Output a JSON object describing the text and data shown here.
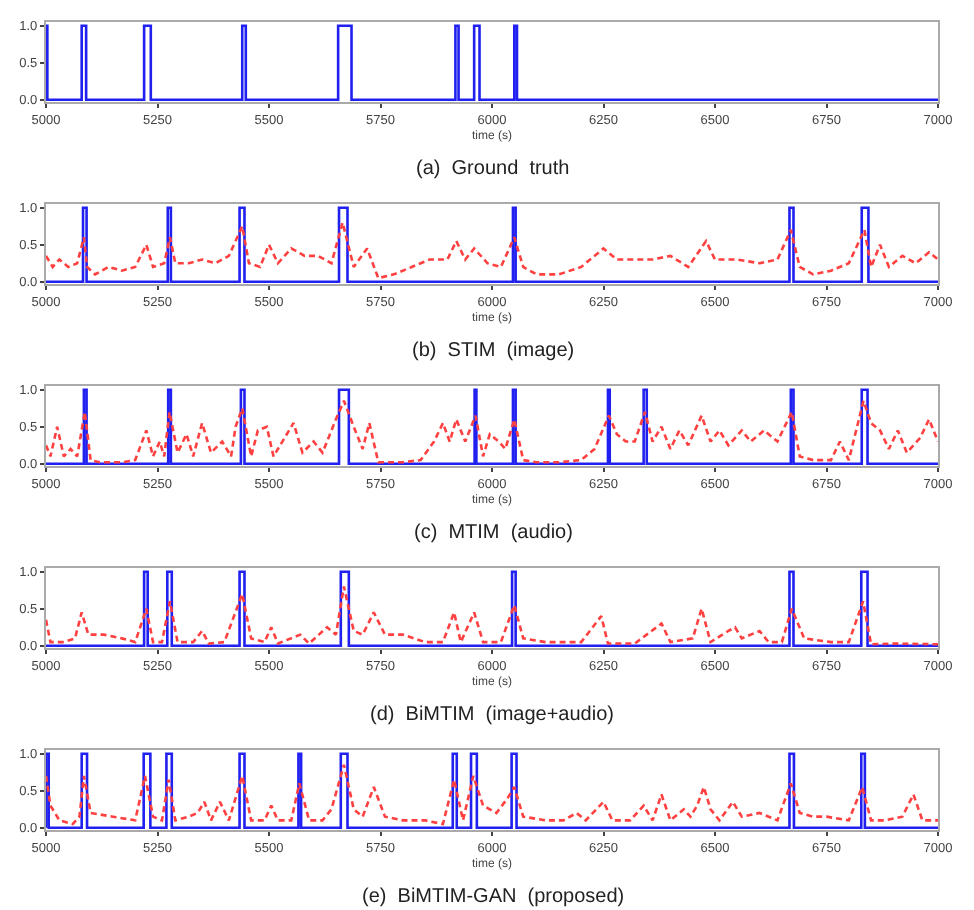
{
  "chart_data": [
    {
      "type": "line",
      "title": "(a)  Ground  truth",
      "xlabel": "time (s)",
      "xlim": [
        5000,
        7000
      ],
      "xticks": [
        5000,
        5250,
        5500,
        5750,
        6000,
        6250,
        6500,
        6750,
        7000
      ],
      "ylim": [
        -0.03,
        1.05
      ],
      "yticks": [
        {
          "value": 0,
          "label": "0.0"
        },
        {
          "value": 0.5,
          "label": "0.5"
        },
        {
          "value": 1,
          "label": "1.0"
        }
      ],
      "marker": "none",
      "series": [
        {
          "color": "#2020f0",
          "line_style": "solid",
          "x": [
            5000,
            5000,
            5003,
            5003,
            5080,
            5080,
            5090,
            5090,
            5220,
            5220,
            5235,
            5235,
            5440,
            5440,
            5448,
            5448,
            5655,
            5655,
            5685,
            5685,
            5918,
            5918,
            5925,
            5925,
            5960,
            5960,
            5972,
            5972,
            6050,
            6050,
            6056,
            6056,
            7000
          ],
          "values": [
            0,
            1,
            1,
            0,
            0,
            1,
            1,
            0,
            0,
            1,
            1,
            0,
            0,
            1,
            1,
            0,
            0,
            1,
            1,
            0,
            0,
            1,
            1,
            0,
            0,
            1,
            1,
            0,
            0,
            1,
            1,
            0,
            0
          ]
        }
      ]
    },
    {
      "type": "line",
      "title": "(b)  STIM  (image)",
      "xlabel": "time (s)",
      "xlim": [
        5000,
        7000
      ],
      "xticks": [
        5000,
        5250,
        5500,
        5750,
        6000,
        6250,
        6500,
        6750,
        7000
      ],
      "ylim": [
        -0.03,
        1.05
      ],
      "yticks": [
        {
          "value": 0,
          "label": "0.0"
        },
        {
          "value": 0.5,
          "label": "0.5"
        },
        {
          "value": 1,
          "label": "1.0"
        }
      ],
      "marker": "none",
      "series": [
        {
          "color": "#2020f0",
          "line_style": "solid",
          "x": [
            5000,
            5083,
            5083,
            5091,
            5091,
            5273,
            5273,
            5280,
            5280,
            5434,
            5434,
            5445,
            5445,
            5657,
            5657,
            5676,
            5676,
            6047,
            6047,
            6053,
            6053,
            6667,
            6667,
            6676,
            6676,
            6829,
            6829,
            6844,
            6844,
            7000
          ],
          "values": [
            0,
            0,
            1,
            1,
            0,
            0,
            1,
            1,
            0,
            0,
            1,
            1,
            0,
            0,
            1,
            1,
            0,
            0,
            1,
            1,
            0,
            0,
            1,
            1,
            0,
            0,
            1,
            1,
            0,
            0
          ]
        },
        {
          "color": "#ff4040",
          "line_style": "dashed",
          "x": [
            5000,
            5015,
            5030,
            5050,
            5070,
            5085,
            5092,
            5110,
            5140,
            5170,
            5200,
            5225,
            5240,
            5265,
            5278,
            5290,
            5320,
            5350,
            5380,
            5410,
            5440,
            5455,
            5480,
            5500,
            5520,
            5550,
            5580,
            5610,
            5640,
            5665,
            5690,
            5720,
            5745,
            5780,
            5820,
            5860,
            5900,
            5920,
            5940,
            5960,
            5990,
            6020,
            6050,
            6070,
            6100,
            6150,
            6200,
            6250,
            6280,
            6320,
            6360,
            6400,
            6440,
            6480,
            6500,
            6550,
            6600,
            6640,
            6670,
            6690,
            6720,
            6760,
            6800,
            6835,
            6850,
            6870,
            6890,
            6920,
            6950,
            6980,
            7000
          ],
          "values": [
            0.35,
            0.2,
            0.3,
            0.2,
            0.25,
            0.6,
            0.2,
            0.1,
            0.2,
            0.15,
            0.2,
            0.5,
            0.2,
            0.25,
            0.6,
            0.25,
            0.25,
            0.3,
            0.25,
            0.35,
            0.75,
            0.25,
            0.2,
            0.5,
            0.25,
            0.45,
            0.35,
            0.35,
            0.25,
            0.8,
            0.2,
            0.45,
            0.05,
            0.1,
            0.2,
            0.3,
            0.3,
            0.55,
            0.3,
            0.45,
            0.25,
            0.2,
            0.6,
            0.2,
            0.1,
            0.1,
            0.2,
            0.45,
            0.3,
            0.3,
            0.3,
            0.35,
            0.2,
            0.55,
            0.3,
            0.3,
            0.25,
            0.3,
            0.7,
            0.2,
            0.1,
            0.15,
            0.25,
            0.7,
            0.2,
            0.5,
            0.2,
            0.35,
            0.25,
            0.4,
            0.3
          ]
        }
      ]
    },
    {
      "type": "line",
      "title": "(c)  MTIM  (audio)",
      "xlabel": "time (s)",
      "xlim": [
        5000,
        7000
      ],
      "xticks": [
        5000,
        5250,
        5500,
        5750,
        6000,
        6250,
        6500,
        6750,
        7000
      ],
      "ylim": [
        -0.03,
        1.05
      ],
      "yticks": [
        {
          "value": 0,
          "label": "0.0"
        },
        {
          "value": 0.5,
          "label": "0.5"
        },
        {
          "value": 1,
          "label": "1.0"
        }
      ],
      "marker": "none",
      "series": [
        {
          "color": "#2020f0",
          "line_style": "solid",
          "x": [
            5000,
            5085,
            5085,
            5091,
            5091,
            5274,
            5274,
            5280,
            5280,
            5437,
            5437,
            5445,
            5445,
            5657,
            5657,
            5679,
            5679,
            5961,
            5961,
            5965,
            5965,
            6047,
            6047,
            6053,
            6053,
            6260,
            6260,
            6264,
            6264,
            6340,
            6340,
            6347,
            6347,
            6670,
            6670,
            6676,
            6676,
            6829,
            6829,
            6842,
            6842,
            7000
          ],
          "values": [
            0,
            0,
            1,
            1,
            0,
            0,
            1,
            1,
            0,
            0,
            1,
            1,
            0,
            0,
            1,
            1,
            0,
            0,
            1,
            1,
            0,
            0,
            1,
            1,
            0,
            0,
            1,
            1,
            0,
            0,
            1,
            1,
            0,
            0,
            1,
            1,
            0,
            0,
            1,
            1,
            0,
            0
          ]
        },
        {
          "color": "#ff4040",
          "line_style": "dashed",
          "x": [
            5000,
            5010,
            5025,
            5040,
            5055,
            5070,
            5087,
            5100,
            5120,
            5170,
            5200,
            5225,
            5240,
            5255,
            5265,
            5277,
            5295,
            5315,
            5330,
            5350,
            5370,
            5395,
            5415,
            5425,
            5440,
            5460,
            5475,
            5495,
            5510,
            5530,
            5555,
            5575,
            5600,
            5620,
            5650,
            5668,
            5690,
            5710,
            5725,
            5745,
            5800,
            5840,
            5870,
            5890,
            5905,
            5920,
            5940,
            5963,
            5980,
            5995,
            6015,
            6030,
            6050,
            6070,
            6100,
            6150,
            6200,
            6230,
            6262,
            6280,
            6300,
            6320,
            6343,
            6360,
            6380,
            6400,
            6420,
            6440,
            6470,
            6490,
            6510,
            6530,
            6560,
            6580,
            6610,
            6640,
            6672,
            6690,
            6720,
            6760,
            6780,
            6800,
            6833,
            6850,
            6870,
            6890,
            6910,
            6930,
            6960,
            6980,
            7000
          ],
          "values": [
            0.25,
            0.1,
            0.5,
            0.1,
            0.2,
            0.1,
            0.7,
            0.05,
            0.02,
            0.02,
            0.05,
            0.45,
            0.1,
            0.3,
            0.1,
            0.7,
            0.15,
            0.4,
            0.1,
            0.55,
            0.15,
            0.3,
            0.1,
            0.5,
            0.75,
            0.1,
            0.45,
            0.5,
            0.1,
            0.3,
            0.55,
            0.15,
            0.3,
            0.15,
            0.6,
            0.85,
            0.5,
            0.2,
            0.55,
            0.02,
            0.02,
            0.05,
            0.3,
            0.55,
            0.3,
            0.6,
            0.3,
            0.65,
            0.1,
            0.4,
            0.3,
            0.2,
            0.6,
            0.05,
            0.02,
            0.02,
            0.05,
            0.2,
            0.65,
            0.4,
            0.3,
            0.3,
            0.7,
            0.3,
            0.5,
            0.2,
            0.45,
            0.25,
            0.65,
            0.3,
            0.45,
            0.25,
            0.45,
            0.3,
            0.45,
            0.3,
            0.7,
            0.1,
            0.05,
            0.05,
            0.3,
            0.05,
            0.85,
            0.55,
            0.45,
            0.2,
            0.45,
            0.15,
            0.35,
            0.6,
            0.3
          ]
        }
      ]
    },
    {
      "type": "line",
      "title": "(d)  BiMTIM  (image+audio)",
      "xlabel": "time (s)",
      "xlim": [
        5000,
        7000
      ],
      "xticks": [
        5000,
        5250,
        5500,
        5750,
        6000,
        6250,
        6500,
        6750,
        7000
      ],
      "ylim": [
        -0.03,
        1.05
      ],
      "yticks": [
        {
          "value": 0,
          "label": "0.0"
        },
        {
          "value": 0.5,
          "label": "0.5"
        },
        {
          "value": 1,
          "label": "1.0"
        }
      ],
      "marker": "none",
      "series": [
        {
          "color": "#2020f0",
          "line_style": "solid",
          "x": [
            5000,
            5220,
            5220,
            5228,
            5228,
            5272,
            5272,
            5282,
            5282,
            5434,
            5434,
            5445,
            5445,
            5661,
            5661,
            5679,
            5679,
            6045,
            6045,
            6053,
            6053,
            6667,
            6667,
            6676,
            6676,
            6828,
            6828,
            6842,
            6842,
            7000
          ],
          "values": [
            0,
            0,
            1,
            1,
            0,
            0,
            1,
            1,
            0,
            0,
            1,
            1,
            0,
            0,
            1,
            1,
            0,
            0,
            1,
            1,
            0,
            0,
            1,
            1,
            0,
            0,
            1,
            1,
            0,
            0
          ]
        },
        {
          "color": "#ff4040",
          "line_style": "dashed",
          "x": [
            5000,
            5010,
            5040,
            5065,
            5080,
            5095,
            5130,
            5170,
            5200,
            5225,
            5240,
            5260,
            5278,
            5295,
            5330,
            5350,
            5365,
            5400,
            5440,
            5460,
            5490,
            5505,
            5520,
            5570,
            5590,
            5630,
            5650,
            5668,
            5690,
            5710,
            5735,
            5760,
            5800,
            5850,
            5890,
            5915,
            5930,
            5960,
            5980,
            6020,
            6050,
            6070,
            6120,
            6200,
            6245,
            6260,
            6320,
            6380,
            6400,
            6450,
            6470,
            6490,
            6530,
            6545,
            6560,
            6600,
            6620,
            6650,
            6672,
            6700,
            6760,
            6800,
            6832,
            6850,
            6900,
            7000
          ],
          "values": [
            0.35,
            0.05,
            0.05,
            0.1,
            0.45,
            0.15,
            0.15,
            0.1,
            0.05,
            0.5,
            0.05,
            0.05,
            0.6,
            0.05,
            0.05,
            0.2,
            0.03,
            0.05,
            0.7,
            0.1,
            0.05,
            0.25,
            0.03,
            0.15,
            0.03,
            0.25,
            0.15,
            0.8,
            0.2,
            0.15,
            0.45,
            0.15,
            0.15,
            0.05,
            0.05,
            0.45,
            0.05,
            0.45,
            0.05,
            0.05,
            0.55,
            0.1,
            0.05,
            0.05,
            0.4,
            0.03,
            0.03,
            0.3,
            0.05,
            0.1,
            0.5,
            0.05,
            0.2,
            0.25,
            0.1,
            0.2,
            0.05,
            0.05,
            0.5,
            0.1,
            0.05,
            0.05,
            0.6,
            0.02,
            0.03,
            0.02
          ]
        }
      ]
    },
    {
      "type": "line",
      "title": "(e)  BiMTIM-GAN  (proposed)",
      "xlabel": "time (s)",
      "xlim": [
        5000,
        7000
      ],
      "xticks": [
        5000,
        5250,
        5500,
        5750,
        6000,
        6250,
        6500,
        6750,
        7000
      ],
      "ylim": [
        -0.03,
        1.05
      ],
      "yticks": [
        {
          "value": 0,
          "label": "0.0"
        },
        {
          "value": 0.5,
          "label": "0.5"
        },
        {
          "value": 1,
          "label": "1.0"
        }
      ],
      "marker": "none",
      "series": [
        {
          "color": "#2020f0",
          "line_style": "solid",
          "x": [
            5000,
            5000,
            5006,
            5006,
            5080,
            5080,
            5092,
            5092,
            5219,
            5219,
            5234,
            5234,
            5270,
            5270,
            5282,
            5282,
            5434,
            5434,
            5445,
            5445,
            5566,
            5566,
            5572,
            5572,
            5661,
            5661,
            5676,
            5676,
            5912,
            5912,
            5921,
            5921,
            5953,
            5953,
            5966,
            5966,
            6044,
            6044,
            6055,
            6055,
            6667,
            6667,
            6677,
            6677,
            6828,
            6828,
            6836,
            6836,
            7000
          ],
          "values": [
            0,
            1,
            1,
            0,
            0,
            1,
            1,
            0,
            0,
            1,
            1,
            0,
            0,
            1,
            1,
            0,
            0,
            1,
            1,
            0,
            0,
            1,
            1,
            0,
            0,
            1,
            1,
            0,
            0,
            1,
            1,
            0,
            0,
            1,
            1,
            0,
            0,
            1,
            1,
            0,
            0,
            1,
            1,
            0,
            0,
            1,
            1,
            0,
            0
          ]
        },
        {
          "color": "#ff4040",
          "line_style": "dashed",
          "x": [
            5000,
            5010,
            5030,
            5060,
            5075,
            5085,
            5100,
            5150,
            5200,
            5222,
            5240,
            5260,
            5275,
            5290,
            5320,
            5340,
            5355,
            5370,
            5390,
            5410,
            5440,
            5460,
            5490,
            5505,
            5520,
            5550,
            5568,
            5590,
            5620,
            5640,
            5668,
            5690,
            5710,
            5735,
            5760,
            5800,
            5850,
            5890,
            5915,
            5935,
            5958,
            5980,
            6010,
            6035,
            6050,
            6070,
            6120,
            6160,
            6190,
            6210,
            6250,
            6270,
            6310,
            6340,
            6360,
            6380,
            6400,
            6430,
            6445,
            6460,
            6475,
            6490,
            6510,
            6540,
            6560,
            6600,
            6640,
            6670,
            6690,
            6720,
            6750,
            6800,
            6830,
            6850,
            6880,
            6920,
            6945,
            6965,
            7000
          ],
          "values": [
            0.7,
            0.3,
            0.1,
            0.05,
            0.15,
            0.7,
            0.2,
            0.15,
            0.1,
            0.7,
            0.15,
            0.1,
            0.65,
            0.1,
            0.15,
            0.2,
            0.35,
            0.1,
            0.35,
            0.1,
            0.7,
            0.1,
            0.1,
            0.3,
            0.1,
            0.1,
            0.6,
            0.1,
            0.1,
            0.25,
            0.85,
            0.25,
            0.15,
            0.55,
            0.15,
            0.1,
            0.1,
            0.05,
            0.65,
            0.1,
            0.7,
            0.3,
            0.2,
            0.4,
            0.55,
            0.15,
            0.1,
            0.1,
            0.2,
            0.1,
            0.35,
            0.1,
            0.1,
            0.3,
            0.1,
            0.45,
            0.1,
            0.25,
            0.15,
            0.3,
            0.55,
            0.25,
            0.1,
            0.35,
            0.15,
            0.2,
            0.1,
            0.6,
            0.2,
            0.15,
            0.15,
            0.1,
            0.55,
            0.1,
            0.1,
            0.15,
            0.45,
            0.1,
            0.1
          ]
        }
      ]
    }
  ]
}
